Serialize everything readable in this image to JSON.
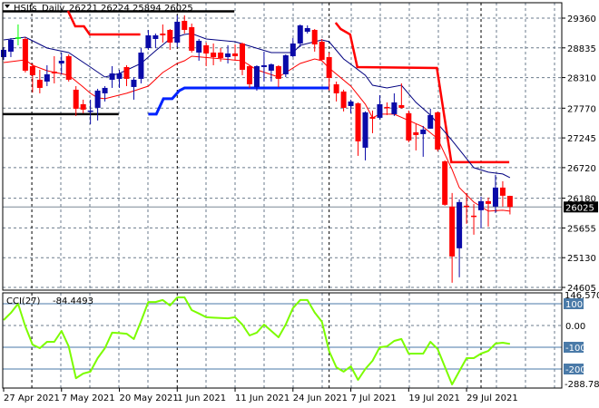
{
  "header": {
    "symbol": "HSIfs",
    "timeframe": "Daily",
    "ohlc_text": "26221 26224 25894 26025"
  },
  "colors": {
    "bull": "#0a0aa8",
    "bear": "#ff0000",
    "doji": "#00ff00",
    "ma_slow": "#000080",
    "ma_fast": "#ff0000",
    "resistance": "#ff0000",
    "support": "#0022ff",
    "level": "#000000",
    "cci": "#7cfc00",
    "grid": "#6b7b8c",
    "cci_level": "#4a7aa8"
  },
  "chart_data": [
    {
      "type": "candlestick",
      "title": "HSIfs Daily",
      "price_ticks": [
        "29360",
        "28835",
        "28310",
        "27770",
        "27245",
        "26720",
        "26180",
        "25655",
        "25130",
        "24605"
      ],
      "ylim": [
        24605,
        29360
      ],
      "grid": true,
      "current_price": "26025",
      "date_labels": [
        {
          "index": 0,
          "text": "27 Apr 2021"
        },
        {
          "index": 8,
          "text": "7 May 2021"
        },
        {
          "index": 16,
          "text": "20 May 2021"
        },
        {
          "index": 24,
          "text": "1 Jun 2021"
        },
        {
          "index": 32,
          "text": "11 Jun 2021"
        },
        {
          "index": 40,
          "text": "24 Jun 2021"
        },
        {
          "index": 48,
          "text": "7 Jul 2021"
        },
        {
          "index": 56,
          "text": "19 Jul 2021"
        },
        {
          "index": 64,
          "text": "29 Jul 2021"
        }
      ],
      "month_separators": [
        3.9,
        24,
        45,
        66
      ],
      "candles_ohlc": [
        [
          28672,
          28848,
          28624,
          28800
        ],
        [
          28768,
          29008,
          28672,
          28976
        ],
        [
          29008,
          29248,
          28880,
          29008
        ],
        [
          28992,
          29024,
          28400,
          28432
        ],
        [
          28512,
          28560,
          28048,
          28352
        ],
        [
          28272,
          28448,
          28032,
          28128
        ],
        [
          28240,
          28528,
          28160,
          28368
        ],
        [
          28416,
          28688,
          28208,
          28384
        ],
        [
          28560,
          28752,
          28368,
          28608
        ],
        [
          28688,
          28720,
          28240,
          28272
        ],
        [
          28096,
          28160,
          27632,
          27760
        ],
        [
          27840,
          27920,
          27680,
          27744
        ],
        [
          27712,
          27920,
          27488,
          27728
        ],
        [
          27776,
          28112,
          27552,
          28080
        ],
        [
          28032,
          28160,
          27888,
          28128
        ],
        [
          28272,
          28512,
          28128,
          28384
        ],
        [
          28288,
          28448,
          28128,
          28384
        ],
        [
          28496,
          28528,
          28160,
          28288
        ],
        [
          28144,
          28320,
          27920,
          28272
        ],
        [
          28288,
          28832,
          28208,
          28752
        ],
        [
          28832,
          29152,
          28800,
          29056
        ],
        [
          28992,
          29088,
          28832,
          29056
        ],
        [
          29088,
          29248,
          28928,
          29056
        ],
        [
          29152,
          29168,
          28800,
          28928
        ],
        [
          28928,
          29408,
          28848,
          29296
        ],
        [
          29312,
          29408,
          29088,
          29152
        ],
        [
          29200,
          29264,
          28752,
          28784
        ],
        [
          28752,
          28992,
          28608,
          28960
        ],
        [
          28880,
          28928,
          28512,
          28736
        ],
        [
          28752,
          28912,
          28528,
          28672
        ],
        [
          28752,
          28832,
          28592,
          28656
        ],
        [
          28672,
          28880,
          28560,
          28736
        ],
        [
          28736,
          28896,
          28608,
          28688
        ],
        [
          28912,
          28928,
          28352,
          28448
        ],
        [
          28512,
          28528,
          28128,
          28192
        ],
        [
          28144,
          28528,
          28080,
          28512
        ],
        [
          28496,
          28768,
          28240,
          28528
        ],
        [
          28432,
          28560,
          28240,
          28544
        ],
        [
          28512,
          28528,
          28144,
          28288
        ],
        [
          28368,
          28720,
          28320,
          28704
        ],
        [
          28688,
          29008,
          28672,
          28912
        ],
        [
          28912,
          29248,
          28848,
          29232
        ],
        [
          29120,
          29232,
          29088,
          29184
        ],
        [
          29152,
          29168,
          28768,
          28896
        ],
        [
          28944,
          28992,
          28608,
          28624
        ],
        [
          28672,
          28752,
          28080,
          28304
        ],
        [
          28192,
          28240,
          27888,
          28032
        ],
        [
          28064,
          28096,
          27712,
          27776
        ],
        [
          27808,
          27920,
          27680,
          27888
        ],
        [
          27856,
          27872,
          26928,
          27184
        ],
        [
          27072,
          27712,
          26848,
          27696
        ],
        [
          27616,
          27728,
          27328,
          27584
        ],
        [
          27600,
          28000,
          27568,
          27840
        ],
        [
          27792,
          27872,
          27648,
          27776
        ],
        [
          27664,
          28032,
          27632,
          27872
        ],
        [
          27824,
          28208,
          27760,
          27776
        ],
        [
          27680,
          27728,
          27168,
          27200
        ],
        [
          27344,
          27488,
          27024,
          27296
        ],
        [
          27312,
          27456,
          26912,
          27392
        ],
        [
          27408,
          27760,
          27408,
          27648
        ],
        [
          27696,
          27712,
          27008,
          27040
        ],
        [
          26832,
          26848,
          26048,
          26064
        ],
        [
          26032,
          26272,
          24688,
          25152
        ],
        [
          25296,
          26160,
          24784,
          26112
        ],
        [
          26048,
          26272,
          25728,
          26032
        ],
        [
          25872,
          26080,
          25536,
          25856
        ],
        [
          25968,
          26208,
          25648,
          26128
        ],
        [
          26128,
          26192,
          25680,
          26080
        ],
        [
          26032,
          26592,
          25920,
          26368
        ],
        [
          26368,
          26480,
          26032,
          26224
        ],
        [
          26221,
          26224,
          25894,
          26025
        ]
      ],
      "ma_slow": [
        [
          0,
          28976
        ],
        [
          1,
          28992
        ],
        [
          3,
          29024
        ],
        [
          4,
          28960
        ],
        [
          6,
          28832
        ],
        [
          9,
          28752
        ],
        [
          12,
          28496
        ],
        [
          14,
          28320
        ],
        [
          16,
          28384
        ],
        [
          19,
          28560
        ],
        [
          21,
          28784
        ],
        [
          23,
          28992
        ],
        [
          25,
          29072
        ],
        [
          26,
          29088
        ],
        [
          28,
          28992
        ],
        [
          32,
          28944
        ],
        [
          37,
          28752
        ],
        [
          40,
          28752
        ],
        [
          41,
          28880
        ],
        [
          44,
          28976
        ],
        [
          45,
          28944
        ],
        [
          47,
          28640
        ],
        [
          50,
          28352
        ],
        [
          51,
          28176
        ],
        [
          53,
          28128
        ],
        [
          55,
          28176
        ],
        [
          57,
          27872
        ],
        [
          59,
          27648
        ],
        [
          62,
          27200
        ],
        [
          65,
          26720
        ],
        [
          67,
          26640
        ],
        [
          69,
          26608
        ],
        [
          70,
          26544
        ]
      ],
      "ma_fast": [
        [
          0,
          28576
        ],
        [
          1,
          28592
        ],
        [
          3,
          28624
        ],
        [
          4,
          28528
        ],
        [
          6,
          28432
        ],
        [
          9,
          28352
        ],
        [
          11,
          28144
        ],
        [
          12,
          28032
        ],
        [
          13,
          27952
        ],
        [
          14,
          27936
        ],
        [
          15,
          27968
        ],
        [
          17,
          28032
        ],
        [
          20,
          28160
        ],
        [
          22,
          28400
        ],
        [
          24,
          28560
        ],
        [
          25,
          28608
        ],
        [
          26,
          28688
        ],
        [
          33,
          28608
        ],
        [
          35,
          28448
        ],
        [
          38,
          28320
        ],
        [
          41,
          28560
        ],
        [
          43,
          28640
        ],
        [
          44,
          28608
        ],
        [
          45,
          28480
        ],
        [
          48,
          28160
        ],
        [
          50,
          27840
        ],
        [
          51,
          27600
        ],
        [
          52,
          27664
        ],
        [
          54,
          27664
        ],
        [
          58,
          27440
        ],
        [
          60,
          27232
        ],
        [
          62,
          26688
        ],
        [
          63,
          26368
        ],
        [
          65,
          26112
        ],
        [
          67,
          25952
        ],
        [
          69,
          25968
        ],
        [
          70,
          25952
        ]
      ],
      "resistance_steps": [
        [
          [
            8.9,
            29488
          ],
          [
            9.9,
            29216
          ],
          [
            11.1,
            29216
          ],
          [
            11.9,
            29072
          ],
          [
            18.9,
            29072
          ]
        ],
        [
          [
            45.9,
            29280
          ],
          [
            46.6,
            29168
          ],
          [
            47.9,
            29072
          ],
          [
            48.9,
            28496
          ],
          [
            59.9,
            28480
          ],
          [
            61.9,
            26816
          ],
          [
            69.9,
            26816
          ]
        ]
      ],
      "support_steps": [
        [
          [
            20,
            27664
          ],
          [
            21.1,
            27664
          ],
          [
            22.1,
            27936
          ],
          [
            23.3,
            27936
          ],
          [
            24.3,
            28080
          ],
          [
            25,
            28128
          ],
          [
            45,
            28128
          ]
        ]
      ],
      "levels": [
        [
          [
            -0.1,
            29480
          ],
          [
            31.9,
            29480
          ]
        ],
        [
          [
            -0.1,
            27664
          ],
          [
            15.9,
            27664
          ]
        ]
      ]
    },
    {
      "type": "line",
      "title": "CCI(27)",
      "last_value": "-84.4493",
      "ylim": [
        -288.785,
        146.5705
      ],
      "axis_labels": [
        "146.5705",
        "0.00",
        "-288.785"
      ],
      "level_labels": [
        "100",
        "-100",
        "-200"
      ],
      "levels": [
        100,
        -100,
        -200
      ],
      "values": [
        25,
        58,
        100,
        -4,
        -88,
        -104,
        -75,
        -75,
        -25,
        -96,
        -242,
        -221,
        -212,
        -150,
        -104,
        -33,
        -35,
        -38,
        -62,
        20,
        108,
        108,
        117,
        92,
        129,
        129,
        71,
        55,
        38,
        36,
        34,
        33,
        38,
        4,
        -46,
        -33,
        4,
        -25,
        -54,
        4,
        80,
        117,
        117,
        60,
        17,
        -117,
        -192,
        -212,
        -188,
        -250,
        -200,
        -162,
        -100,
        -96,
        -71,
        -62,
        -129,
        -129,
        -129,
        -75,
        -108,
        -190,
        -271,
        -210,
        -150,
        -150,
        -129,
        -117,
        -83,
        -79,
        -84.4493
      ]
    }
  ]
}
